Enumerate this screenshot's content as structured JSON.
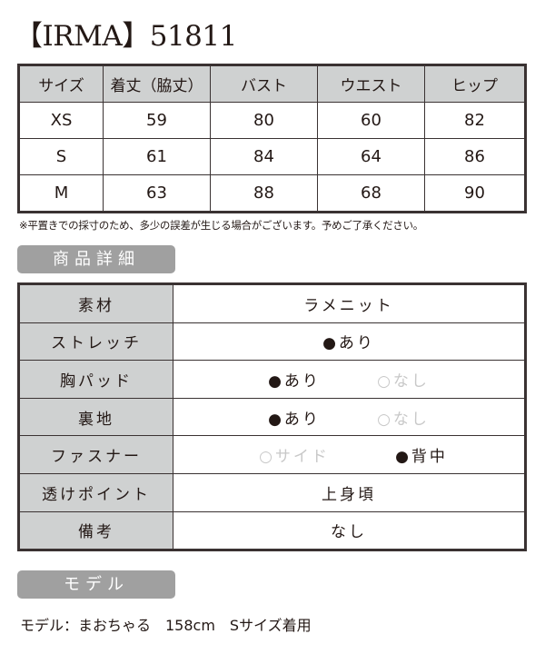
{
  "title": "【IRMA】51811",
  "size_table": {
    "headers": [
      "サイズ",
      "着丈（脇丈）",
      "バスト",
      "ウエスト",
      "ヒップ"
    ],
    "rows": [
      [
        "XS",
        "59",
        "80",
        "60",
        "82"
      ],
      [
        "S",
        "61",
        "84",
        "64",
        "86"
      ],
      [
        "M",
        "63",
        "88",
        "68",
        "90"
      ]
    ]
  },
  "note": "※平置きでの採寸のため、多少の誤差が生じる場合がございます。予めご了承ください。",
  "details_badge": "商品詳細",
  "details": {
    "material": {
      "label": "素材",
      "value": "ラメニット"
    },
    "stretch": {
      "label": "ストレッチ",
      "value": "●あり"
    },
    "pad": {
      "label": "胸パッド",
      "on": "●あり",
      "off": "○なし"
    },
    "lining": {
      "label": "裏地",
      "on": "●あり",
      "off": "○なし"
    },
    "fastener": {
      "label": "ファスナー",
      "off": "○サイド",
      "on": "●背中"
    },
    "sheer": {
      "label": "透けポイント",
      "value": "上身頃"
    },
    "remarks": {
      "label": "備考",
      "value": "なし"
    }
  },
  "model_badge": "モデル",
  "model_text": "モデル：まおちゃる　158cm　Sサイズ着用"
}
